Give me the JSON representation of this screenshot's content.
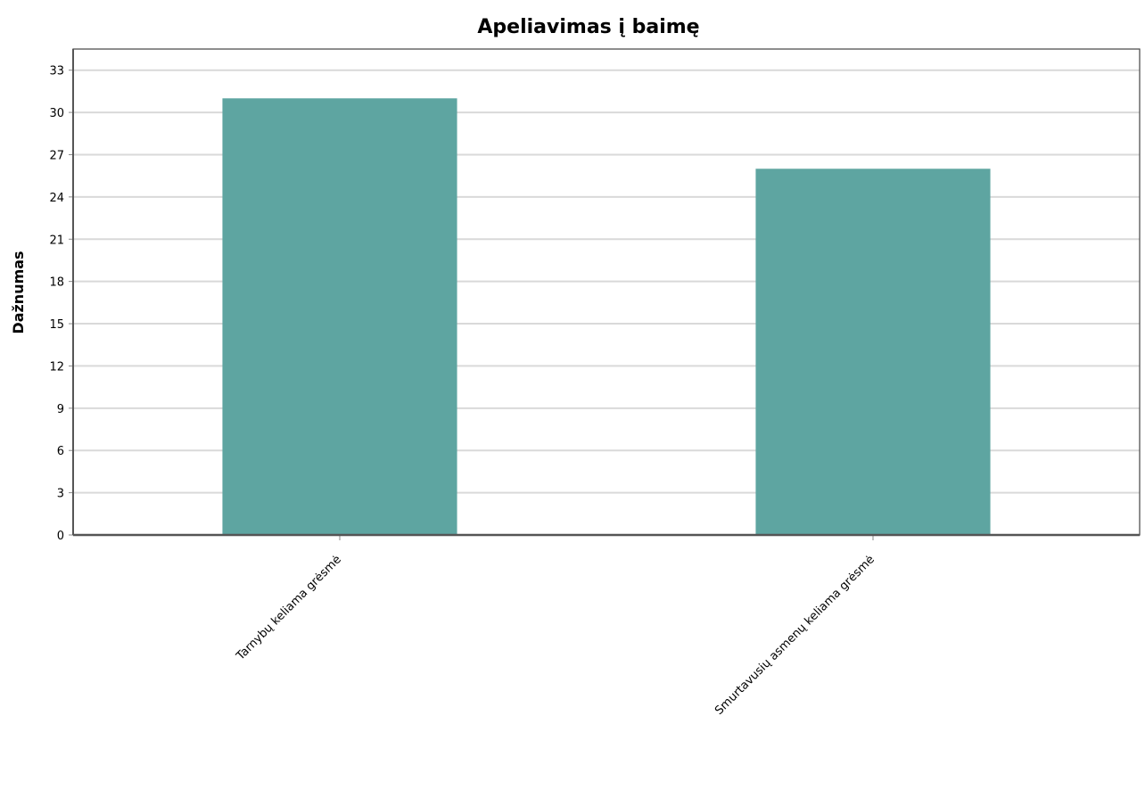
{
  "chart_data": {
    "type": "bar",
    "title": "Apeliavimas į baimę",
    "xlabel": "",
    "ylabel": "Dažnumas",
    "categories": [
      "Tarnybų keliama grėsmė",
      "Smurtavusių asmenų keliama grėsmė"
    ],
    "values": [
      31,
      26
    ],
    "ylim": [
      0,
      34.5
    ],
    "yticks": [
      0,
      3,
      6,
      9,
      12,
      15,
      18,
      21,
      24,
      27,
      30,
      33
    ],
    "grid": true,
    "legend": "none",
    "colors": {
      "bar": "#5ea5a1",
      "grid": "#d9d9d9",
      "axis": "#555555"
    }
  }
}
